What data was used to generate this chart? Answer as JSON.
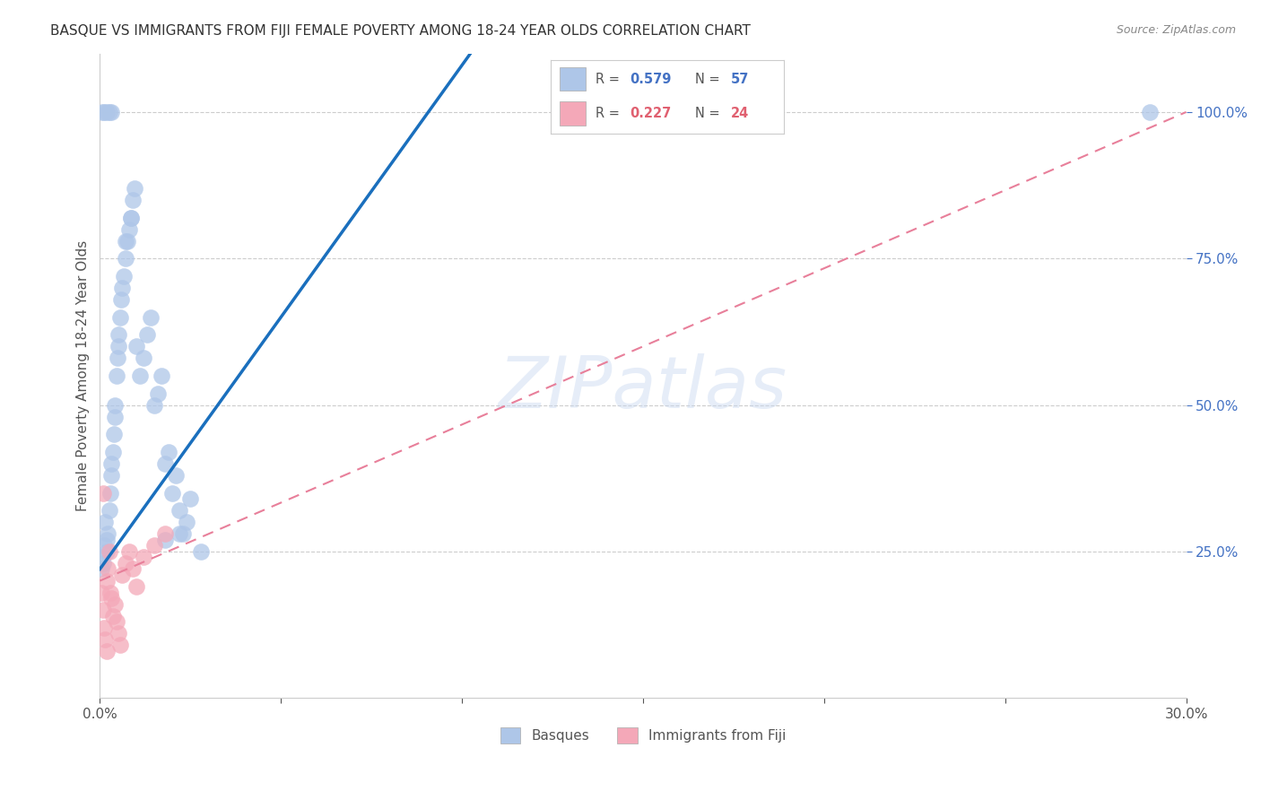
{
  "title": "BASQUE VS IMMIGRANTS FROM FIJI FEMALE POVERTY AMONG 18-24 YEAR OLDS CORRELATION CHART",
  "source": "Source: ZipAtlas.com",
  "ylabel": "Female Poverty Among 18-24 Year Olds",
  "ytick_labels": [
    "100.0%",
    "75.0%",
    "50.0%",
    "25.0%"
  ],
  "ytick_values": [
    1.0,
    0.75,
    0.5,
    0.25
  ],
  "xlim": [
    0.0,
    0.3
  ],
  "ylim": [
    0.0,
    1.1
  ],
  "background_color": "#ffffff",
  "grid_color": "#cccccc",
  "basque_color": "#aec6e8",
  "fiji_color": "#f4a8b8",
  "blue_line_color": "#1a6fbd",
  "pink_line_color": "#e87f9a",
  "blue_line_x": [
    0.0,
    0.3
  ],
  "blue_line_y": [
    0.22,
    2.8
  ],
  "pink_line_x": [
    0.0,
    0.3
  ],
  "pink_line_y": [
    0.2,
    1.0
  ],
  "basque_x": [
    0.0005,
    0.0007,
    0.001,
    0.0012,
    0.0015,
    0.0018,
    0.002,
    0.0022,
    0.0025,
    0.0028,
    0.003,
    0.0032,
    0.0035,
    0.0038,
    0.004,
    0.0042,
    0.0045,
    0.0048,
    0.005,
    0.0052,
    0.0055,
    0.0058,
    0.006,
    0.0065,
    0.007,
    0.0075,
    0.008,
    0.0085,
    0.009,
    0.0095,
    0.01,
    0.011,
    0.012,
    0.013,
    0.014,
    0.015,
    0.016,
    0.017,
    0.018,
    0.019,
    0.02,
    0.021,
    0.022,
    0.023,
    0.024,
    0.025,
    0.028,
    0.0007,
    0.0012,
    0.002,
    0.0025,
    0.003,
    0.018,
    0.022,
    0.29,
    0.007,
    0.0085
  ],
  "basque_y": [
    0.22,
    0.24,
    0.23,
    0.26,
    0.3,
    0.27,
    0.25,
    0.28,
    0.32,
    0.35,
    0.38,
    0.4,
    0.42,
    0.45,
    0.48,
    0.5,
    0.55,
    0.58,
    0.6,
    0.62,
    0.65,
    0.68,
    0.7,
    0.72,
    0.75,
    0.78,
    0.8,
    0.82,
    0.85,
    0.87,
    0.6,
    0.55,
    0.58,
    0.62,
    0.65,
    0.5,
    0.52,
    0.55,
    0.4,
    0.42,
    0.35,
    0.38,
    0.32,
    0.28,
    0.3,
    0.34,
    0.25,
    1.0,
    1.0,
    1.0,
    1.0,
    1.0,
    0.27,
    0.28,
    1.0,
    0.78,
    0.82
  ],
  "fiji_x": [
    0.0005,
    0.0008,
    0.001,
    0.0012,
    0.0015,
    0.0018,
    0.002,
    0.0022,
    0.0025,
    0.0028,
    0.003,
    0.0035,
    0.004,
    0.0045,
    0.005,
    0.0055,
    0.006,
    0.007,
    0.008,
    0.009,
    0.01,
    0.012,
    0.015,
    0.018
  ],
  "fiji_y": [
    0.18,
    0.35,
    0.15,
    0.12,
    0.1,
    0.08,
    0.2,
    0.22,
    0.25,
    0.18,
    0.17,
    0.14,
    0.16,
    0.13,
    0.11,
    0.09,
    0.21,
    0.23,
    0.25,
    0.22,
    0.19,
    0.24,
    0.26,
    0.28
  ]
}
